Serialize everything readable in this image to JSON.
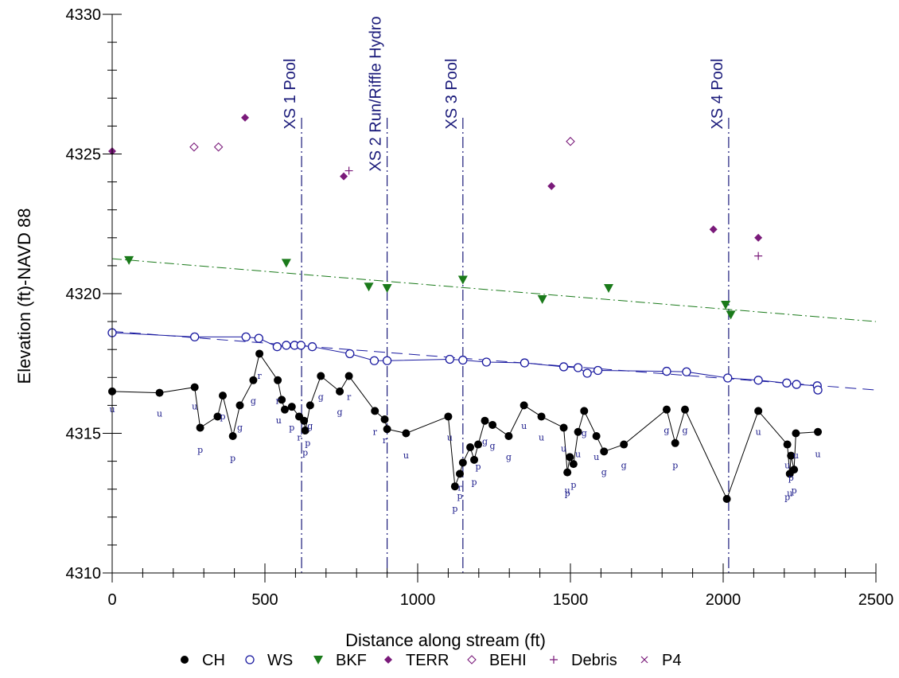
{
  "chart_data": {
    "type": "scatter",
    "xlabel": "Distance along stream (ft)",
    "ylabel": "Elevation (ft)-NAVD 88",
    "xlim": [
      0,
      2500
    ],
    "ylim": [
      4310,
      4330
    ],
    "x_ticks": [
      "0",
      "500",
      "1000",
      "1500",
      "2000",
      "2500"
    ],
    "y_ticks": [
      "4310",
      "4315",
      "4320",
      "4325",
      "4330"
    ],
    "colors": {
      "ch": "#000000",
      "ws": "#1a1aa0",
      "bkf": "#1a7a1a",
      "terr": "#7a1a7a",
      "behi": "#7a1a7a",
      "debris": "#7a1a7a",
      "xs_line": "#1a1a7a"
    },
    "cross_sections": [
      {
        "x": 620,
        "label": "XS 1 Pool"
      },
      {
        "x": 900,
        "label": "XS 2 Run/Riffle Hydro"
      },
      {
        "x": 1148,
        "label": "XS 3 Pool"
      },
      {
        "x": 2018,
        "label": "XS 4 Pool"
      }
    ],
    "series": [
      {
        "name": "CH",
        "marker": "filled-circle",
        "connected": true,
        "points": [
          [
            0,
            4316.5
          ],
          [
            155,
            4316.45
          ],
          [
            270,
            4316.65
          ],
          [
            288,
            4315.2
          ],
          [
            345,
            4315.6
          ],
          [
            362,
            4316.35
          ],
          [
            395,
            4314.9
          ],
          [
            418,
            4316
          ],
          [
            462,
            4316.9
          ],
          [
            482,
            4317.85
          ],
          [
            542,
            4316.9
          ],
          [
            555,
            4316.2
          ],
          [
            565,
            4315.85
          ],
          [
            588,
            4315.95
          ],
          [
            612,
            4315.6
          ],
          [
            628,
            4315.45
          ],
          [
            632,
            4315.1
          ],
          [
            648,
            4316
          ],
          [
            683,
            4317.05
          ],
          [
            745,
            4316.5
          ],
          [
            775,
            4317.05
          ],
          [
            860,
            4315.8
          ],
          [
            892,
            4315.5
          ],
          [
            900,
            4315.15
          ],
          [
            962,
            4315
          ],
          [
            1100,
            4315.6
          ],
          [
            1122,
            4313.1
          ],
          [
            1138,
            4313.55
          ],
          [
            1148,
            4313.95
          ],
          [
            1172,
            4314.5
          ],
          [
            1185,
            4314.05
          ],
          [
            1198,
            4314.6
          ],
          [
            1220,
            4315.45
          ],
          [
            1245,
            4315.3
          ],
          [
            1298,
            4314.9
          ],
          [
            1348,
            4316
          ],
          [
            1405,
            4315.6
          ],
          [
            1478,
            4315.2
          ],
          [
            1490,
            4313.6
          ],
          [
            1498,
            4314.15
          ],
          [
            1510,
            4313.9
          ],
          [
            1525,
            4315.05
          ],
          [
            1545,
            4315.8
          ],
          [
            1585,
            4314.9
          ],
          [
            1610,
            4314.35
          ],
          [
            1675,
            4314.6
          ],
          [
            1815,
            4315.85
          ],
          [
            1843,
            4314.65
          ],
          [
            1875,
            4315.85
          ],
          [
            2012,
            4312.65
          ],
          [
            2115,
            4315.8
          ],
          [
            2210,
            4314.6
          ],
          [
            2218,
            4313.55
          ],
          [
            2222,
            4314.2
          ],
          [
            2232,
            4313.7
          ],
          [
            2238,
            4315
          ],
          [
            2310,
            4315.05
          ]
        ]
      },
      {
        "name": "WS",
        "marker": "open-circle",
        "connected": true,
        "points": [
          [
            0,
            4318.6
          ],
          [
            270,
            4318.45
          ],
          [
            438,
            4318.45
          ],
          [
            480,
            4318.4
          ],
          [
            540,
            4318.1
          ],
          [
            570,
            4318.15
          ],
          [
            597,
            4318.15
          ],
          [
            618,
            4318.15
          ],
          [
            655,
            4318.1
          ],
          [
            778,
            4317.85
          ],
          [
            858,
            4317.6
          ],
          [
            900,
            4317.6
          ],
          [
            1105,
            4317.65
          ],
          [
            1148,
            4317.62
          ],
          [
            1225,
            4317.55
          ],
          [
            1350,
            4317.52
          ],
          [
            1478,
            4317.38
          ],
          [
            1525,
            4317.35
          ],
          [
            1555,
            4317.15
          ],
          [
            1590,
            4317.25
          ],
          [
            1815,
            4317.22
          ],
          [
            1880,
            4317.2
          ],
          [
            2015,
            4316.98
          ],
          [
            2115,
            4316.9
          ],
          [
            2208,
            4316.8
          ],
          [
            2240,
            4316.75
          ],
          [
            2308,
            4316.7
          ],
          [
            2310,
            4316.55
          ]
        ]
      },
      {
        "name": "BKF",
        "marker": "filled-triangle-down",
        "connected": false,
        "points": [
          [
            55,
            4321.2
          ],
          [
            570,
            4321.1
          ],
          [
            840,
            4320.25
          ],
          [
            900,
            4320.2
          ],
          [
            1148,
            4320.5
          ],
          [
            1408,
            4319.8
          ],
          [
            1625,
            4320.2
          ],
          [
            2008,
            4319.6
          ],
          [
            2025,
            4319.25
          ]
        ]
      },
      {
        "name": "TERR",
        "marker": "filled-diamond",
        "connected": false,
        "points": [
          [
            0,
            4325.1
          ],
          [
            435,
            4326.3
          ],
          [
            758,
            4324.2
          ],
          [
            1438,
            4323.85
          ],
          [
            1968,
            4322.3
          ],
          [
            2115,
            4322
          ]
        ]
      },
      {
        "name": "BEHI",
        "marker": "open-diamond",
        "connected": false,
        "points": [
          [
            268,
            4325.25
          ],
          [
            348,
            4325.25
          ],
          [
            1500,
            4325.45
          ]
        ]
      },
      {
        "name": "Debris",
        "marker": "plus",
        "connected": false,
        "points": [
          [
            775,
            4324.4
          ],
          [
            2115,
            4321.35
          ]
        ]
      },
      {
        "name": "P4",
        "marker": "x",
        "connected": false,
        "points": []
      }
    ],
    "trend_lines": [
      {
        "series": "BKF",
        "style": "dash-dot",
        "from": [
          0,
          4321.25
        ],
        "to": [
          2500,
          4319
        ]
      },
      {
        "series": "WS",
        "style": "dashed",
        "from": [
          0,
          4318.65
        ],
        "to": [
          2500,
          4316.55
        ]
      }
    ],
    "code_labels": [
      {
        "t": "u",
        "x": 0,
        "y": 4315.75
      },
      {
        "t": "u",
        "x": 155,
        "y": 4315.6
      },
      {
        "t": "u",
        "x": 270,
        "y": 4315.85
      },
      {
        "t": "u",
        "x": 545,
        "y": 4315.35
      },
      {
        "t": "u",
        "x": 962,
        "y": 4314.1
      },
      {
        "t": "u",
        "x": 1105,
        "y": 4314.75
      },
      {
        "t": "u",
        "x": 1348,
        "y": 4315.15
      },
      {
        "t": "u",
        "x": 1405,
        "y": 4314.75
      },
      {
        "t": "u",
        "x": 1478,
        "y": 4314.35
      },
      {
        "t": "u",
        "x": 1525,
        "y": 4314.15
      },
      {
        "t": "u",
        "x": 1585,
        "y": 4314.05
      },
      {
        "t": "u",
        "x": 1490,
        "y": 4312.85
      },
      {
        "t": "u",
        "x": 2115,
        "y": 4314.95
      },
      {
        "t": "u",
        "x": 2210,
        "y": 4313.75
      },
      {
        "t": "u",
        "x": 2238,
        "y": 4314.1
      },
      {
        "t": "u",
        "x": 2310,
        "y": 4314.15
      },
      {
        "t": "u",
        "x": 2218,
        "y": 4312.75
      },
      {
        "t": "p",
        "x": 288,
        "y": 4314.3
      },
      {
        "t": "p",
        "x": 362,
        "y": 4315.5
      },
      {
        "t": "p",
        "x": 395,
        "y": 4314
      },
      {
        "t": "p",
        "x": 588,
        "y": 4315.1
      },
      {
        "t": "p",
        "x": 632,
        "y": 4314.2
      },
      {
        "t": "p",
        "x": 640,
        "y": 4314.55
      },
      {
        "t": "p",
        "x": 1122,
        "y": 4312.2
      },
      {
        "t": "p",
        "x": 1138,
        "y": 4312.65
      },
      {
        "t": "p",
        "x": 1185,
        "y": 4313.15
      },
      {
        "t": "p",
        "x": 1198,
        "y": 4313.7
      },
      {
        "t": "p",
        "x": 1490,
        "y": 4312.75
      },
      {
        "t": "p",
        "x": 1510,
        "y": 4313.05
      },
      {
        "t": "p",
        "x": 1843,
        "y": 4313.75
      },
      {
        "t": "p",
        "x": 2222,
        "y": 4313.3
      },
      {
        "t": "p",
        "x": 2232,
        "y": 4312.85
      },
      {
        "t": "p",
        "x": 2210,
        "y": 4312.6
      },
      {
        "t": "r",
        "x": 482,
        "y": 4316.95
      },
      {
        "t": "r",
        "x": 542,
        "y": 4316.05
      },
      {
        "t": "r",
        "x": 612,
        "y": 4314.75
      },
      {
        "t": "r",
        "x": 775,
        "y": 4316.2
      },
      {
        "t": "r",
        "x": 860,
        "y": 4314.95
      },
      {
        "t": "r",
        "x": 892,
        "y": 4314.65
      },
      {
        "t": "r",
        "x": 1138,
        "y": 4312.95
      },
      {
        "t": "g",
        "x": 418,
        "y": 4315.1
      },
      {
        "t": "g",
        "x": 462,
        "y": 4316.05
      },
      {
        "t": "g",
        "x": 648,
        "y": 4315.15
      },
      {
        "t": "g",
        "x": 683,
        "y": 4316.2
      },
      {
        "t": "g",
        "x": 745,
        "y": 4315.65
      },
      {
        "t": "g",
        "x": 1220,
        "y": 4314.6
      },
      {
        "t": "g",
        "x": 1245,
        "y": 4314.45
      },
      {
        "t": "g",
        "x": 1298,
        "y": 4314.05
      },
      {
        "t": "g",
        "x": 1545,
        "y": 4314.9
      },
      {
        "t": "g",
        "x": 1610,
        "y": 4313.5
      },
      {
        "t": "g",
        "x": 1675,
        "y": 4313.75
      },
      {
        "t": "g",
        "x": 1815,
        "y": 4315
      },
      {
        "t": "g",
        "x": 1875,
        "y": 4315
      }
    ],
    "legend": [
      "CH",
      "WS",
      "BKF",
      "TERR",
      "BEHI",
      "Debris",
      "P4"
    ],
    "legend_placement": "bottom",
    "grid": false
  }
}
